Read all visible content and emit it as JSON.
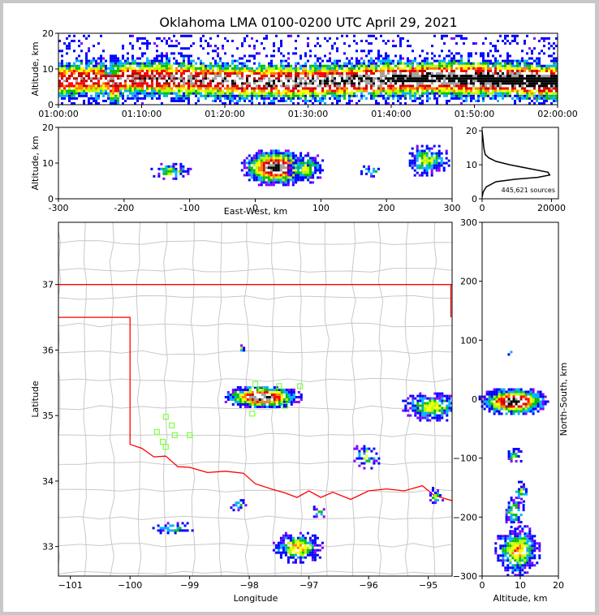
{
  "title": "Oklahoma LMA 0100-0200 UTC April 29, 2021",
  "colors": {
    "density": [
      "#8000ff",
      "#0000ff",
      "#00b0ff",
      "#00c000",
      "#b0ff00",
      "#ffff00",
      "#ff8000",
      "#ff0000",
      "#c00000",
      "#ffffff",
      "#a0a0a0",
      "#000000"
    ],
    "border": "#ff0000",
    "counties": "#c8c8c8",
    "stations": "#80ff40"
  },
  "chart_data": [
    {
      "id": "time-height",
      "type": "heatmap",
      "xlabel": "",
      "ylabel": "Altitude, km",
      "x_tick_labels": [
        "01:00:00",
        "01:10:00",
        "01:20:00",
        "01:30:00",
        "01:40:00",
        "01:50:00",
        "02:00:00"
      ],
      "x_range_minutes": [
        0,
        60
      ],
      "ylim": [
        0,
        20
      ],
      "y_ticks": [
        0,
        10,
        20
      ],
      "core_altitude_km": [
        5,
        8
      ]
    },
    {
      "id": "ew-altitude",
      "type": "heatmap",
      "xlabel": "East-West, km",
      "ylabel": "Altitude, km",
      "xlim": [
        -300,
        300
      ],
      "x_ticks": [
        -300,
        -200,
        -100,
        0,
        100,
        200,
        300
      ],
      "ylim": [
        0,
        20
      ],
      "y_ticks": [
        0,
        10,
        20
      ]
    },
    {
      "id": "altitude-histogram",
      "type": "line",
      "xlabel": "",
      "ylabel": "",
      "xlim": [
        0,
        22000
      ],
      "x_ticks": [
        0,
        20000
      ],
      "ylim": [
        0,
        21
      ],
      "y_ticks": [
        0,
        10,
        20
      ],
      "annotation": "445,621 sources",
      "x": [
        0,
        300,
        1200,
        4000,
        10000,
        16000,
        19500,
        19000,
        14000,
        8000,
        4000,
        2000,
        900,
        500,
        300,
        0
      ],
      "y": [
        0.5,
        2,
        3.5,
        5,
        5.8,
        6.3,
        7,
        7.8,
        8.8,
        10,
        11,
        12,
        13,
        15,
        17,
        20
      ]
    },
    {
      "id": "plan-view",
      "type": "heatmap",
      "xlabel": "Longitude",
      "ylabel": "Latitude",
      "xlim": [
        -101.2,
        -94.6
      ],
      "x_ticks": [
        -101,
        -100,
        -99,
        -98,
        -97,
        -96,
        -95
      ],
      "ylim": [
        32.55,
        37.95
      ],
      "y_ticks": [
        33,
        34,
        35,
        36,
        37
      ],
      "right_ylabel": "North-South, km",
      "right_ylim": [
        -300,
        300
      ],
      "right_y_ticks": [
        -300,
        -200,
        -100,
        0,
        100,
        200,
        300
      ]
    },
    {
      "id": "altitude-ns",
      "type": "heatmap",
      "xlabel": "Altitude, km",
      "ylabel": "",
      "xlim": [
        0,
        20
      ],
      "x_ticks": [
        0,
        10,
        20
      ],
      "ylim": [
        -300,
        300
      ]
    }
  ]
}
